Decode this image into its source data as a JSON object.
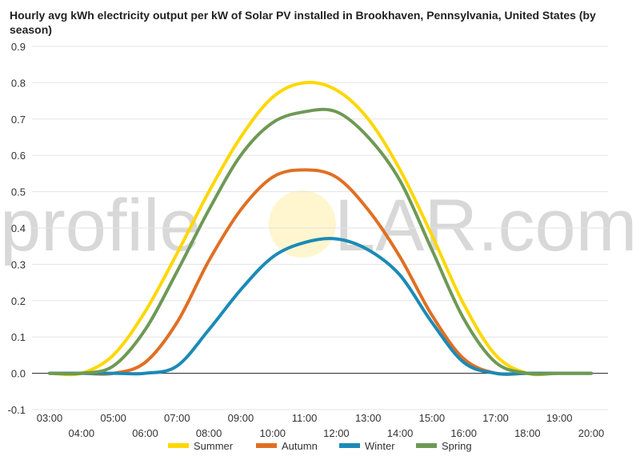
{
  "chart_data": {
    "type": "line",
    "title": "Hourly avg kWh electricity output per kW of Solar PV installed in Brookhaven, Pennsylvania, United States (by season)",
    "xlabel": "",
    "ylabel": "",
    "x": [
      "03:00",
      "04:00",
      "05:00",
      "06:00",
      "07:00",
      "08:00",
      "09:00",
      "10:00",
      "11:00",
      "12:00",
      "13:00",
      "14:00",
      "15:00",
      "16:00",
      "17:00",
      "18:00",
      "19:00",
      "20:00"
    ],
    "ylim": [
      -0.1,
      0.9
    ],
    "yticks": [
      "-0.1",
      "0.0",
      "0.1",
      "0.2",
      "0.3",
      "0.4",
      "0.5",
      "0.6",
      "0.7",
      "0.8",
      "0.9"
    ],
    "grid": true,
    "legend_position": "bottom",
    "series": [
      {
        "name": "Summer",
        "color": "#ffd700",
        "values": [
          0.0,
          0.0,
          0.05,
          0.17,
          0.33,
          0.5,
          0.65,
          0.76,
          0.8,
          0.78,
          0.7,
          0.56,
          0.38,
          0.19,
          0.05,
          0.0,
          0.0,
          0.0
        ]
      },
      {
        "name": "Autumn",
        "color": "#e06f24",
        "values": [
          0.0,
          0.0,
          0.0,
          0.03,
          0.14,
          0.31,
          0.45,
          0.54,
          0.56,
          0.54,
          0.45,
          0.32,
          0.16,
          0.04,
          0.0,
          0.0,
          0.0,
          0.0
        ]
      },
      {
        "name": "Winter",
        "color": "#1b8ab6",
        "values": [
          0.0,
          0.0,
          0.0,
          0.0,
          0.02,
          0.12,
          0.23,
          0.32,
          0.36,
          0.37,
          0.34,
          0.27,
          0.14,
          0.03,
          0.0,
          0.0,
          0.0,
          0.0
        ]
      },
      {
        "name": "Spring",
        "color": "#6e9955",
        "values": [
          0.0,
          0.0,
          0.02,
          0.12,
          0.28,
          0.45,
          0.6,
          0.69,
          0.72,
          0.72,
          0.65,
          0.53,
          0.34,
          0.15,
          0.03,
          0.0,
          0.0,
          0.0
        ]
      }
    ]
  },
  "watermark": {
    "left": "profile",
    "right": "LAR.com"
  }
}
